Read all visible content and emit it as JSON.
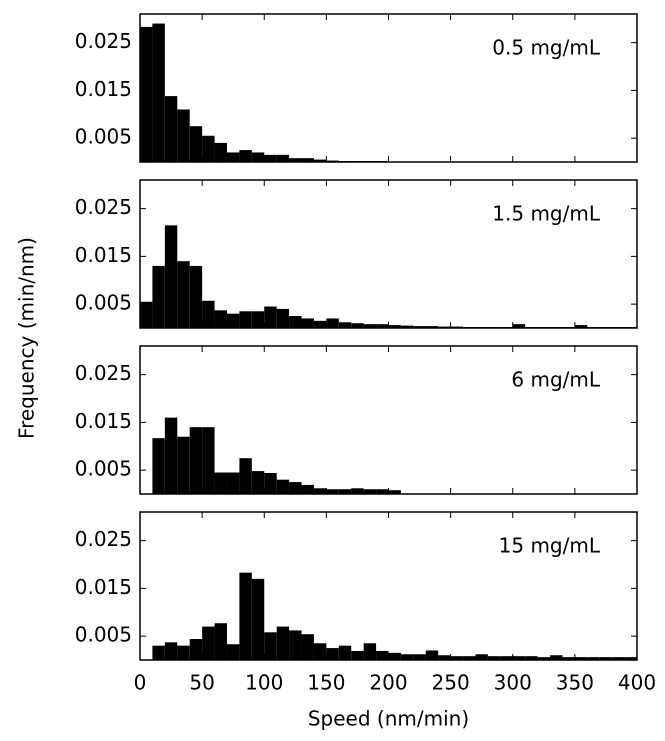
{
  "chart_data": [
    {
      "type": "histogram",
      "annotation": "0.5 mg/mL",
      "ylabel": "Frequency (min/nm)",
      "color": "#000000",
      "bins": [
        0,
        10,
        20,
        30,
        40,
        50,
        60,
        70,
        80,
        90,
        100,
        110,
        120,
        130,
        140,
        150,
        160,
        170,
        180,
        190,
        200,
        210,
        220,
        230,
        240,
        250,
        260,
        270,
        280,
        290,
        300,
        310,
        320,
        330,
        340,
        350,
        360,
        370,
        380,
        390,
        400
      ],
      "values": [
        0.0283,
        0.029,
        0.0138,
        0.011,
        0.0075,
        0.0055,
        0.004,
        0.002,
        0.0025,
        0.002,
        0.0015,
        0.0015,
        0.0008,
        0.0008,
        0.0005,
        0.0003,
        0.0002,
        0.0002,
        0.0002,
        0.0002,
        0,
        0,
        0,
        0,
        0,
        0,
        0,
        0,
        0,
        0,
        0,
        0,
        0,
        0,
        0,
        0,
        0,
        0,
        0,
        0
      ],
      "xlim": [
        0,
        400
      ],
      "xticks": [
        0,
        50,
        100,
        150,
        200,
        250,
        300,
        350,
        400
      ],
      "ylim": [
        0,
        0.031
      ],
      "yticks": [
        0.005,
        0.015,
        0.025
      ]
    },
    {
      "type": "histogram",
      "annotation": "1.5 mg/mL",
      "color": "#000000",
      "bins": [
        0,
        10,
        20,
        30,
        40,
        50,
        60,
        70,
        80,
        90,
        100,
        110,
        120,
        130,
        140,
        150,
        160,
        170,
        180,
        190,
        200,
        210,
        220,
        230,
        240,
        250,
        260,
        270,
        280,
        290,
        300,
        310,
        320,
        330,
        340,
        350,
        360,
        370,
        380,
        390,
        400
      ],
      "values": [
        0.0055,
        0.013,
        0.0215,
        0.014,
        0.013,
        0.0057,
        0.0037,
        0.003,
        0.0035,
        0.0035,
        0.0045,
        0.004,
        0.0025,
        0.002,
        0.0015,
        0.002,
        0.0012,
        0.001,
        0.0008,
        0.0008,
        0.0006,
        0.0005,
        0.0004,
        0.0004,
        0.0003,
        0.0003,
        0.0002,
        0.0002,
        0.0002,
        0.0002,
        0.0008,
        0.0002,
        0.0002,
        0.0002,
        0.0002,
        0.0006,
        0.0002,
        0.0002,
        0.0002,
        0.0002
      ],
      "xlim": [
        0,
        400
      ],
      "xticks": [
        0,
        50,
        100,
        150,
        200,
        250,
        300,
        350,
        400
      ],
      "ylim": [
        0,
        0.031
      ],
      "yticks": [
        0.005,
        0.015,
        0.025
      ]
    },
    {
      "type": "histogram",
      "annotation": "6 mg/mL",
      "color": "#000000",
      "bins": [
        0,
        10,
        20,
        30,
        40,
        50,
        60,
        70,
        80,
        90,
        100,
        110,
        120,
        130,
        140,
        150,
        160,
        170,
        180,
        190,
        200,
        210,
        220,
        230,
        240,
        250,
        260,
        270,
        280,
        290,
        300,
        310,
        320,
        330,
        340,
        350,
        360,
        370,
        380,
        390,
        400
      ],
      "values": [
        0,
        0.0117,
        0.016,
        0.012,
        0.014,
        0.014,
        0.0045,
        0.0045,
        0.0075,
        0.0048,
        0.0044,
        0.003,
        0.0025,
        0.0019,
        0.0012,
        0.001,
        0.001,
        0.0012,
        0.001,
        0.001,
        0.0008,
        0,
        0,
        0,
        0,
        0,
        0,
        0,
        0,
        0,
        0,
        0,
        0,
        0,
        0,
        0,
        0,
        0,
        0,
        0
      ],
      "xlim": [
        0,
        400
      ],
      "xticks": [
        0,
        50,
        100,
        150,
        200,
        250,
        300,
        350,
        400
      ],
      "ylim": [
        0,
        0.031
      ],
      "yticks": [
        0.005,
        0.015,
        0.025
      ]
    },
    {
      "type": "histogram",
      "annotation": "15 mg/mL",
      "xlabel": "Speed (nm/min)",
      "color": "#000000",
      "bins": [
        0,
        10,
        20,
        30,
        40,
        50,
        60,
        70,
        80,
        90,
        100,
        110,
        120,
        130,
        140,
        150,
        160,
        170,
        180,
        190,
        200,
        210,
        220,
        230,
        240,
        250,
        260,
        270,
        280,
        290,
        300,
        310,
        320,
        330,
        340,
        350,
        360,
        370,
        380,
        390,
        400
      ],
      "values": [
        0,
        0.003,
        0.0037,
        0.003,
        0.0044,
        0.007,
        0.0077,
        0.0033,
        0.0183,
        0.017,
        0.0058,
        0.007,
        0.0062,
        0.0054,
        0.0035,
        0.0025,
        0.003,
        0.0019,
        0.0035,
        0.0019,
        0.0015,
        0.0012,
        0.0012,
        0.002,
        0.001,
        0.0008,
        0.0008,
        0.0012,
        0.0008,
        0.0008,
        0.0008,
        0.0008,
        0.0006,
        0.001,
        0.0006,
        0.0006,
        0.0006,
        0.0006,
        0.0006,
        0.0006
      ],
      "xlim": [
        0,
        400
      ],
      "xticks": [
        0,
        50,
        100,
        150,
        200,
        250,
        300,
        350,
        400
      ],
      "ylim": [
        0,
        0.031
      ],
      "yticks": [
        0.005,
        0.015,
        0.025
      ]
    }
  ]
}
